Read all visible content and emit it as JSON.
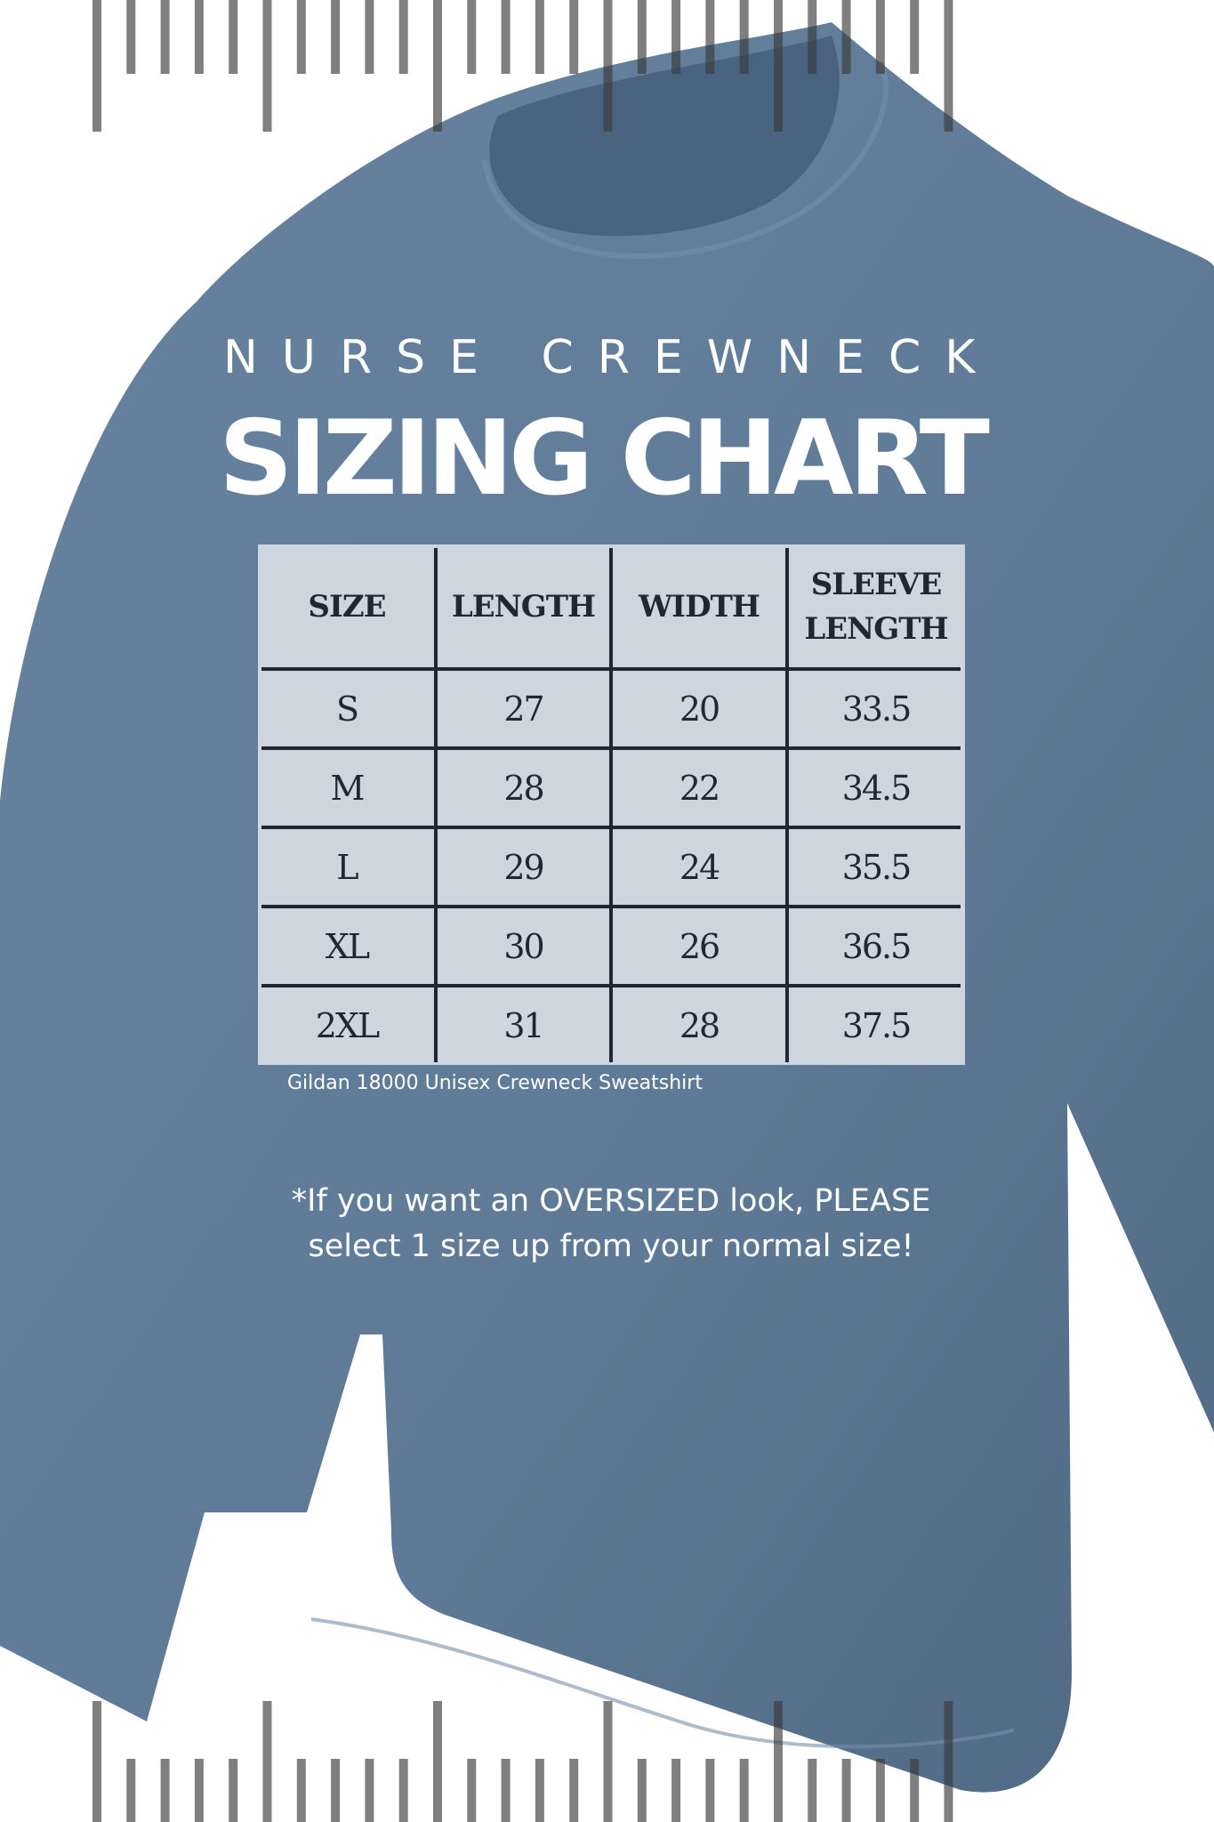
{
  "header": {
    "kicker": "NURSE CREWNECK",
    "title": "SIZING CHART"
  },
  "table": {
    "columns": [
      "SIZE",
      "LENGTH",
      "WIDTH",
      "SLEEVE LENGTH"
    ],
    "rows": [
      [
        "S",
        "27",
        "20",
        "33.5"
      ],
      [
        "M",
        "28",
        "22",
        "34.5"
      ],
      [
        "L",
        "29",
        "24",
        "35.5"
      ],
      [
        "XL",
        "30",
        "26",
        "36.5"
      ],
      [
        "2XL",
        "31",
        "28",
        "37.5"
      ]
    ]
  },
  "footnote": "Gildan 18000 Unisex Crewneck Sweatshirt",
  "note": "*If you want an OVERSIZED look, PLEASE select 1 size up from your normal size!",
  "colors": {
    "shirt": "#5f7a96",
    "table_bg": "#cdd5df",
    "table_lines": "#1e2733",
    "ruler": "#7a7a7a"
  }
}
